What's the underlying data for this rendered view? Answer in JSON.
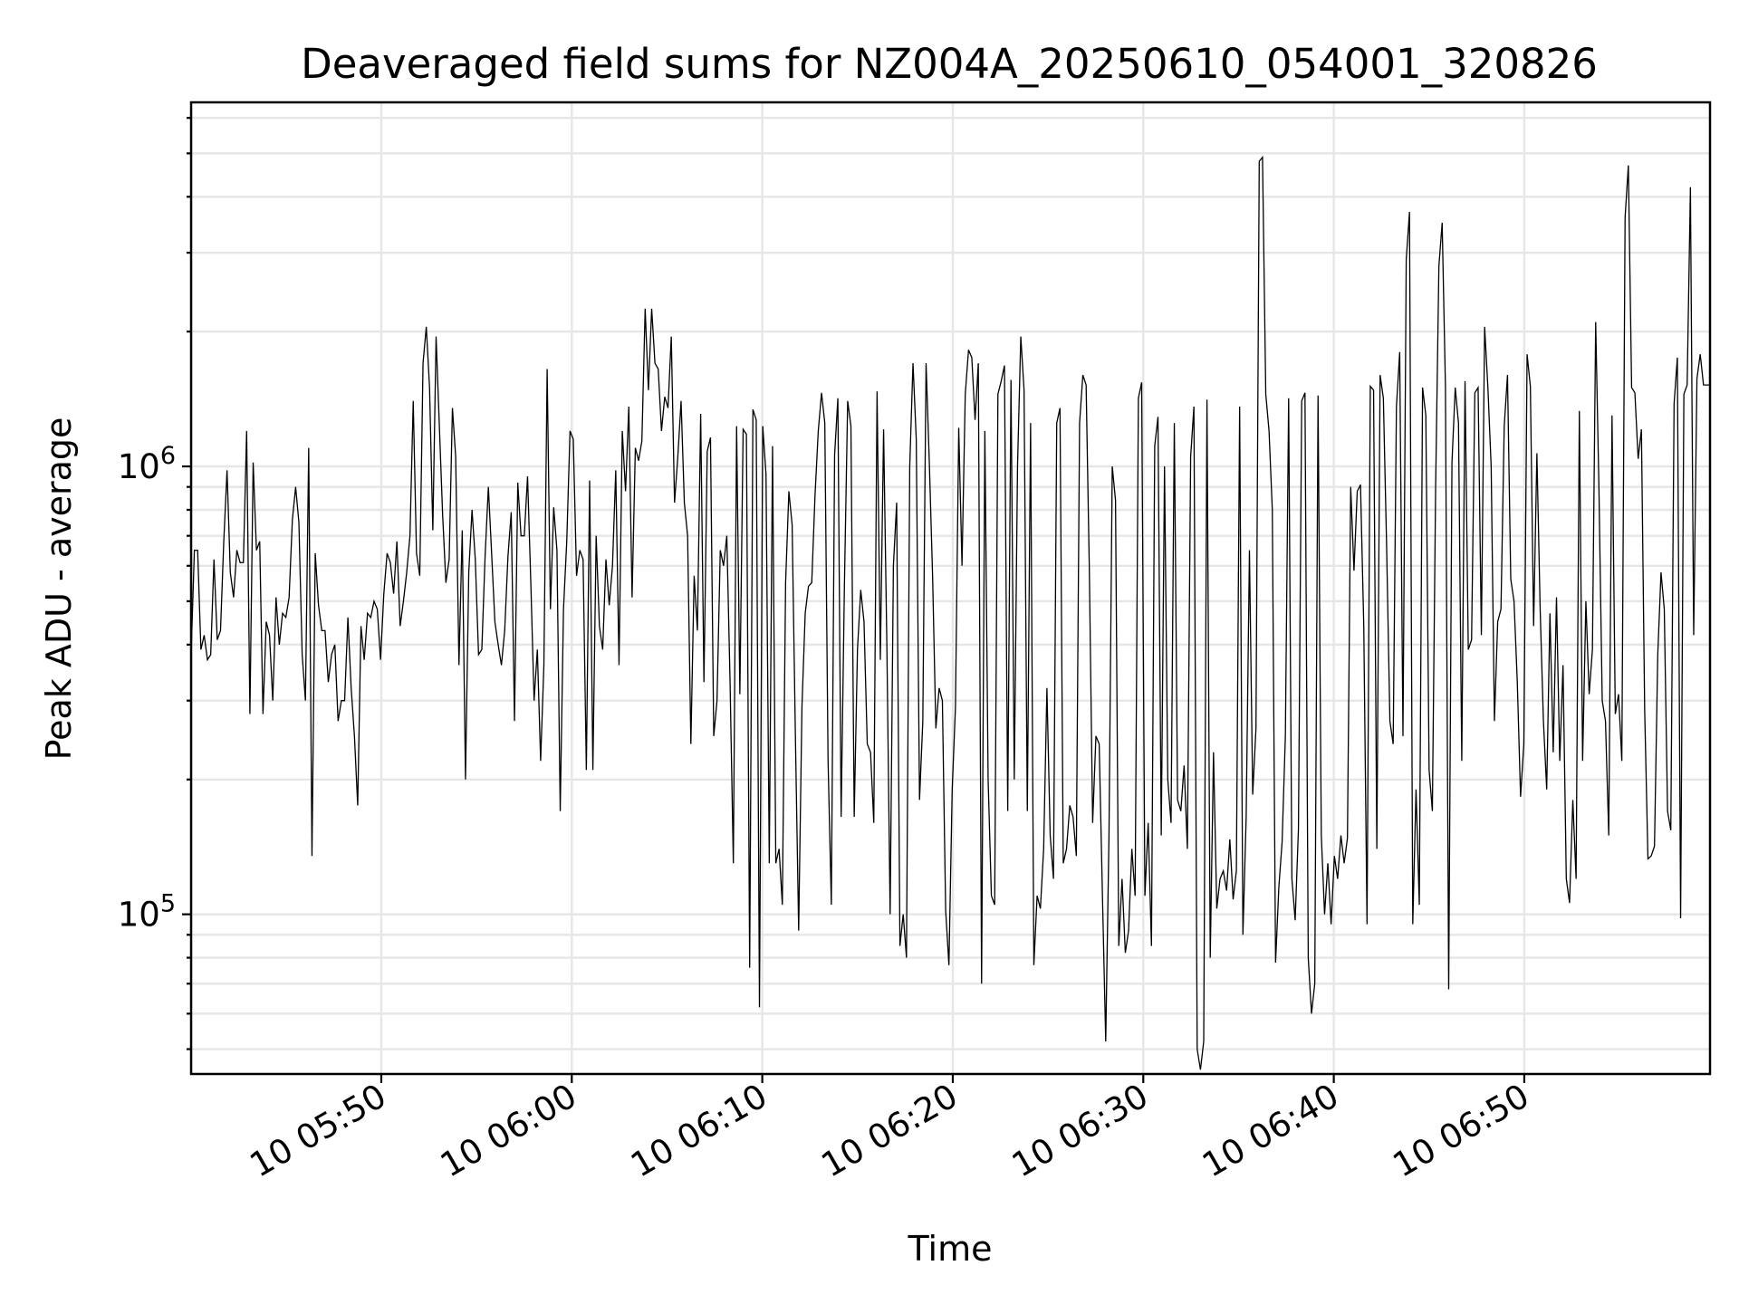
{
  "chart_data": {
    "type": "line",
    "title": "Deaveraged field sums for NZ004A_20250610_054001_320826",
    "xlabel": "Time",
    "ylabel": "Peak ADU - average",
    "y_scale": "log",
    "xlim": [
      "2025-06-10 05:40:01",
      "2025-06-10 06:59:45"
    ],
    "ylim": [
      44000,
      6500000
    ],
    "x_ticks": [
      "10 05:50",
      "10 06:00",
      "10 06:10",
      "10 06:20",
      "10 06:30",
      "10 06:40",
      "10 06:50"
    ],
    "y_ticks": [
      {
        "value": 100000,
        "base": "10",
        "exp": "5"
      },
      {
        "value": 1000000,
        "base": "10",
        "exp": "6"
      }
    ],
    "grid": true,
    "legend": "none",
    "line_color": "#000000",
    "x_start": "2025-06-10 05:40:01",
    "x_end": "2025-06-10 06:59:45",
    "values": [
      380000,
      650000,
      650000,
      390000,
      420000,
      370000,
      380000,
      620000,
      410000,
      430000,
      680000,
      980000,
      580000,
      510000,
      650000,
      610000,
      610000,
      1200000,
      280000,
      1020000,
      650000,
      680000,
      280000,
      450000,
      420000,
      300000,
      510000,
      400000,
      470000,
      460000,
      510000,
      760000,
      900000,
      750000,
      380000,
      300000,
      1100000,
      135000,
      640000,
      490000,
      430000,
      430000,
      330000,
      380000,
      400000,
      270000,
      300000,
      300000,
      460000,
      320000,
      250000,
      175000,
      440000,
      370000,
      470000,
      460000,
      500000,
      480000,
      370000,
      520000,
      640000,
      610000,
      520000,
      680000,
      440000,
      500000,
      580000,
      700000,
      1400000,
      640000,
      570000,
      1700000,
      2050000,
      1500000,
      720000,
      1950000,
      1230000,
      780000,
      550000,
      620000,
      1350000,
      1050000,
      360000,
      720000,
      200000,
      580000,
      800000,
      620000,
      380000,
      390000,
      630000,
      900000,
      640000,
      450000,
      400000,
      360000,
      430000,
      630000,
      790000,
      270000,
      920000,
      700000,
      700000,
      950000,
      550000,
      300000,
      390000,
      220000,
      360000,
      1650000,
      480000,
      810000,
      650000,
      170000,
      480000,
      680000,
      1200000,
      1150000,
      570000,
      650000,
      620000,
      210000,
      930000,
      210000,
      700000,
      440000,
      390000,
      620000,
      490000,
      600000,
      980000,
      360000,
      1200000,
      880000,
      1360000,
      510000,
      1100000,
      1030000,
      1140000,
      2250000,
      1480000,
      2250000,
      1700000,
      1650000,
      1200000,
      1430000,
      1350000,
      1950000,
      830000,
      1050000,
      1400000,
      830000,
      700000,
      240000,
      570000,
      430000,
      1310000,
      330000,
      1080000,
      1160000,
      250000,
      300000,
      650000,
      600000,
      700000,
      330000,
      130000,
      1230000,
      310000,
      1210000,
      1180000,
      76000,
      1340000,
      1270000,
      62000,
      1230000,
      960000,
      130000,
      1110000,
      130000,
      140000,
      105000,
      550000,
      880000,
      740000,
      250000,
      92000,
      290000,
      470000,
      540000,
      550000,
      860000,
      1200000,
      1460000,
      1250000,
      220000,
      105000,
      1060000,
      1420000,
      165000,
      540000,
      1400000,
      1230000,
      165000,
      390000,
      530000,
      450000,
      240000,
      230000,
      160000,
      1470000,
      370000,
      1210000,
      400000,
      100000,
      600000,
      830000,
      85000,
      100000,
      80000,
      1000000,
      1700000,
      1150000,
      180000,
      270000,
      1700000,
      1020000,
      570000,
      260000,
      320000,
      300000,
      102000,
      77000,
      190000,
      290000,
      1220000,
      600000,
      1450000,
      1820000,
      1750000,
      1270000,
      1700000,
      70000,
      1200000,
      200000,
      110000,
      105000,
      1450000,
      1550000,
      1680000,
      170000,
      1560000,
      200000,
      1000000,
      1950000,
      1480000,
      170000,
      1250000,
      77000,
      110000,
      103000,
      140000,
      320000,
      150000,
      120000,
      1250000,
      1350000,
      130000,
      140000,
      175000,
      165000,
      135000,
      1250000,
      1600000,
      1520000,
      580000,
      160000,
      250000,
      240000,
      110000,
      52000,
      150000,
      1000000,
      840000,
      85000,
      120000,
      82000,
      92000,
      140000,
      110000,
      1420000,
      1540000,
      110000,
      160000,
      85000,
      1110000,
      1290000,
      150000,
      1000000,
      200000,
      160000,
      1250000,
      180000,
      170000,
      215000,
      140000,
      1050000,
      1360000,
      50000,
      45000,
      52000,
      1410000,
      80000,
      230000,
      103000,
      120000,
      125000,
      113000,
      147000,
      108000,
      125000,
      1360000,
      90000,
      165000,
      650000,
      185000,
      260000,
      4800000,
      4900000,
      1450000,
      1200000,
      800000,
      78000,
      115000,
      145000,
      250000,
      1420000,
      120000,
      97000,
      155000,
      1400000,
      1460000,
      80000,
      60000,
      70000,
      1440000,
      150000,
      100000,
      130000,
      95000,
      135000,
      120000,
      150000,
      130000,
      148000,
      900000,
      585000,
      880000,
      910000,
      440000,
      95000,
      1510000,
      1480000,
      140000,
      1600000,
      1420000,
      660000,
      270000,
      240000,
      1360000,
      1800000,
      250000,
      2900000,
      3700000,
      95000,
      190000,
      105000,
      1500000,
      1300000,
      210000,
      170000,
      900000,
      2800000,
      3500000,
      1510000,
      68000,
      1020000,
      1500000,
      1250000,
      220000,
      1550000,
      390000,
      410000,
      1460000,
      1500000,
      420000,
      2050000,
      1500000,
      1000000,
      270000,
      450000,
      480000,
      1230000,
      1600000,
      560000,
      500000,
      330000,
      183000,
      240000,
      1780000,
      1510000,
      440000,
      1070000,
      480000,
      270000,
      190000,
      470000,
      230000,
      510000,
      220000,
      360000,
      120000,
      106000,
      180000,
      120000,
      1330000,
      220000,
      500000,
      310000,
      390000,
      2100000,
      890000,
      300000,
      270000,
      150000,
      1300000,
      280000,
      310000,
      220000,
      3600000,
      4700000,
      1500000,
      1460000,
      1040000,
      1210000,
      285000,
      133000,
      135000,
      142000,
      380000,
      580000,
      480000,
      170000,
      154000,
      1380000,
      1750000,
      98000,
      1450000,
      1520000,
      4200000,
      420000,
      1570000,
      1780000,
      1520000,
      1520000,
      1520000
    ]
  }
}
